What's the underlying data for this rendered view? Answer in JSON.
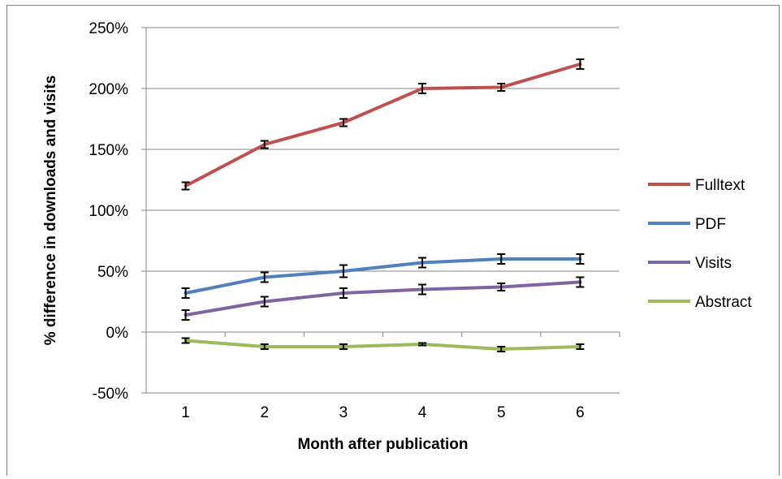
{
  "chart_data": {
    "type": "line",
    "categories": [
      "1",
      "2",
      "3",
      "4",
      "5",
      "6"
    ],
    "xlabel": "Month after publication",
    "ylabel": "% difference in downloads and visits",
    "ylim": [
      -50,
      250
    ],
    "yticks": [
      "-50%",
      "0%",
      "50%",
      "100%",
      "150%",
      "200%",
      "250%"
    ],
    "ytick_values": [
      -50,
      0,
      50,
      100,
      150,
      200,
      250
    ],
    "grid": "horizontal",
    "legend_position": "right",
    "error_bars": true,
    "series": [
      {
        "name": "Fulltext",
        "color": "#c0504d",
        "values": [
          120,
          154,
          172,
          200,
          201,
          220
        ],
        "error": [
          3,
          3,
          3,
          4,
          3,
          4
        ]
      },
      {
        "name": "PDF",
        "color": "#4f81bd",
        "values": [
          32,
          45,
          50,
          57,
          60,
          60
        ],
        "error": [
          4,
          4,
          5,
          4,
          4,
          4
        ]
      },
      {
        "name": "Visits",
        "color": "#8064a2",
        "values": [
          14,
          25,
          32,
          35,
          37,
          41
        ],
        "error": [
          4,
          4,
          4,
          4,
          3,
          4
        ]
      },
      {
        "name": "Abstract",
        "color": "#9bbb59",
        "values": [
          -7,
          -12,
          -12,
          -10,
          -14,
          -12
        ],
        "error": [
          2,
          2,
          2,
          1,
          2,
          2
        ]
      }
    ]
  }
}
